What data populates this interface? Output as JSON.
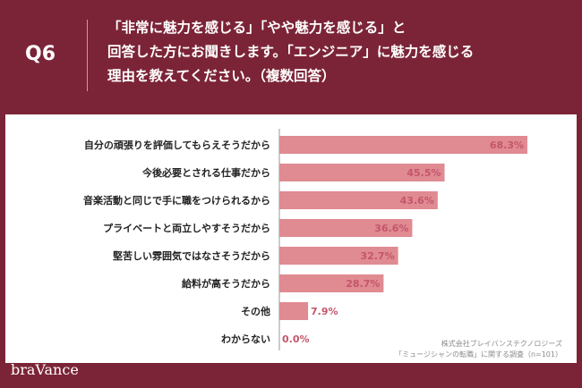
{
  "header": {
    "q_number": "Q6",
    "question_lines": [
      "「非常に魅力を感じる」「やや魅力を感じる」と",
      "回答した方にお聞きします。「エンジニア」に魅力を感じる",
      "理由を教えてください。（複数回答）"
    ]
  },
  "footer": {
    "logo": "braVance",
    "source_lines": [
      "株式会社ブレイバンステクノロジーズ",
      "「ミュージシャンの転職」に関する調査（n=101）"
    ]
  },
  "colors": {
    "frame": "#7c2437",
    "bar": "#e08a92",
    "value_text": "#c4566a",
    "axis": "#999999"
  },
  "chart_data": {
    "type": "bar",
    "orientation": "horizontal",
    "categories": [
      "自分の頑張りを評価してもらえそうだから",
      "今後必要とされる仕事だから",
      "音楽活動と同じで手に職をつけられるから",
      "プライベートと両立しやすそうだから",
      "堅苦しい雰囲気ではなさそうだから",
      "給料が高そうだから",
      "その他",
      "わからない"
    ],
    "values": [
      68.3,
      45.5,
      43.6,
      36.6,
      32.7,
      28.7,
      7.9,
      0.0
    ],
    "value_labels": [
      "68.3%",
      "45.5%",
      "43.6%",
      "36.6%",
      "32.7%",
      "28.7%",
      "7.9%",
      "0.0%"
    ],
    "xlim": [
      0,
      70
    ],
    "grid": false,
    "legend": "none"
  }
}
